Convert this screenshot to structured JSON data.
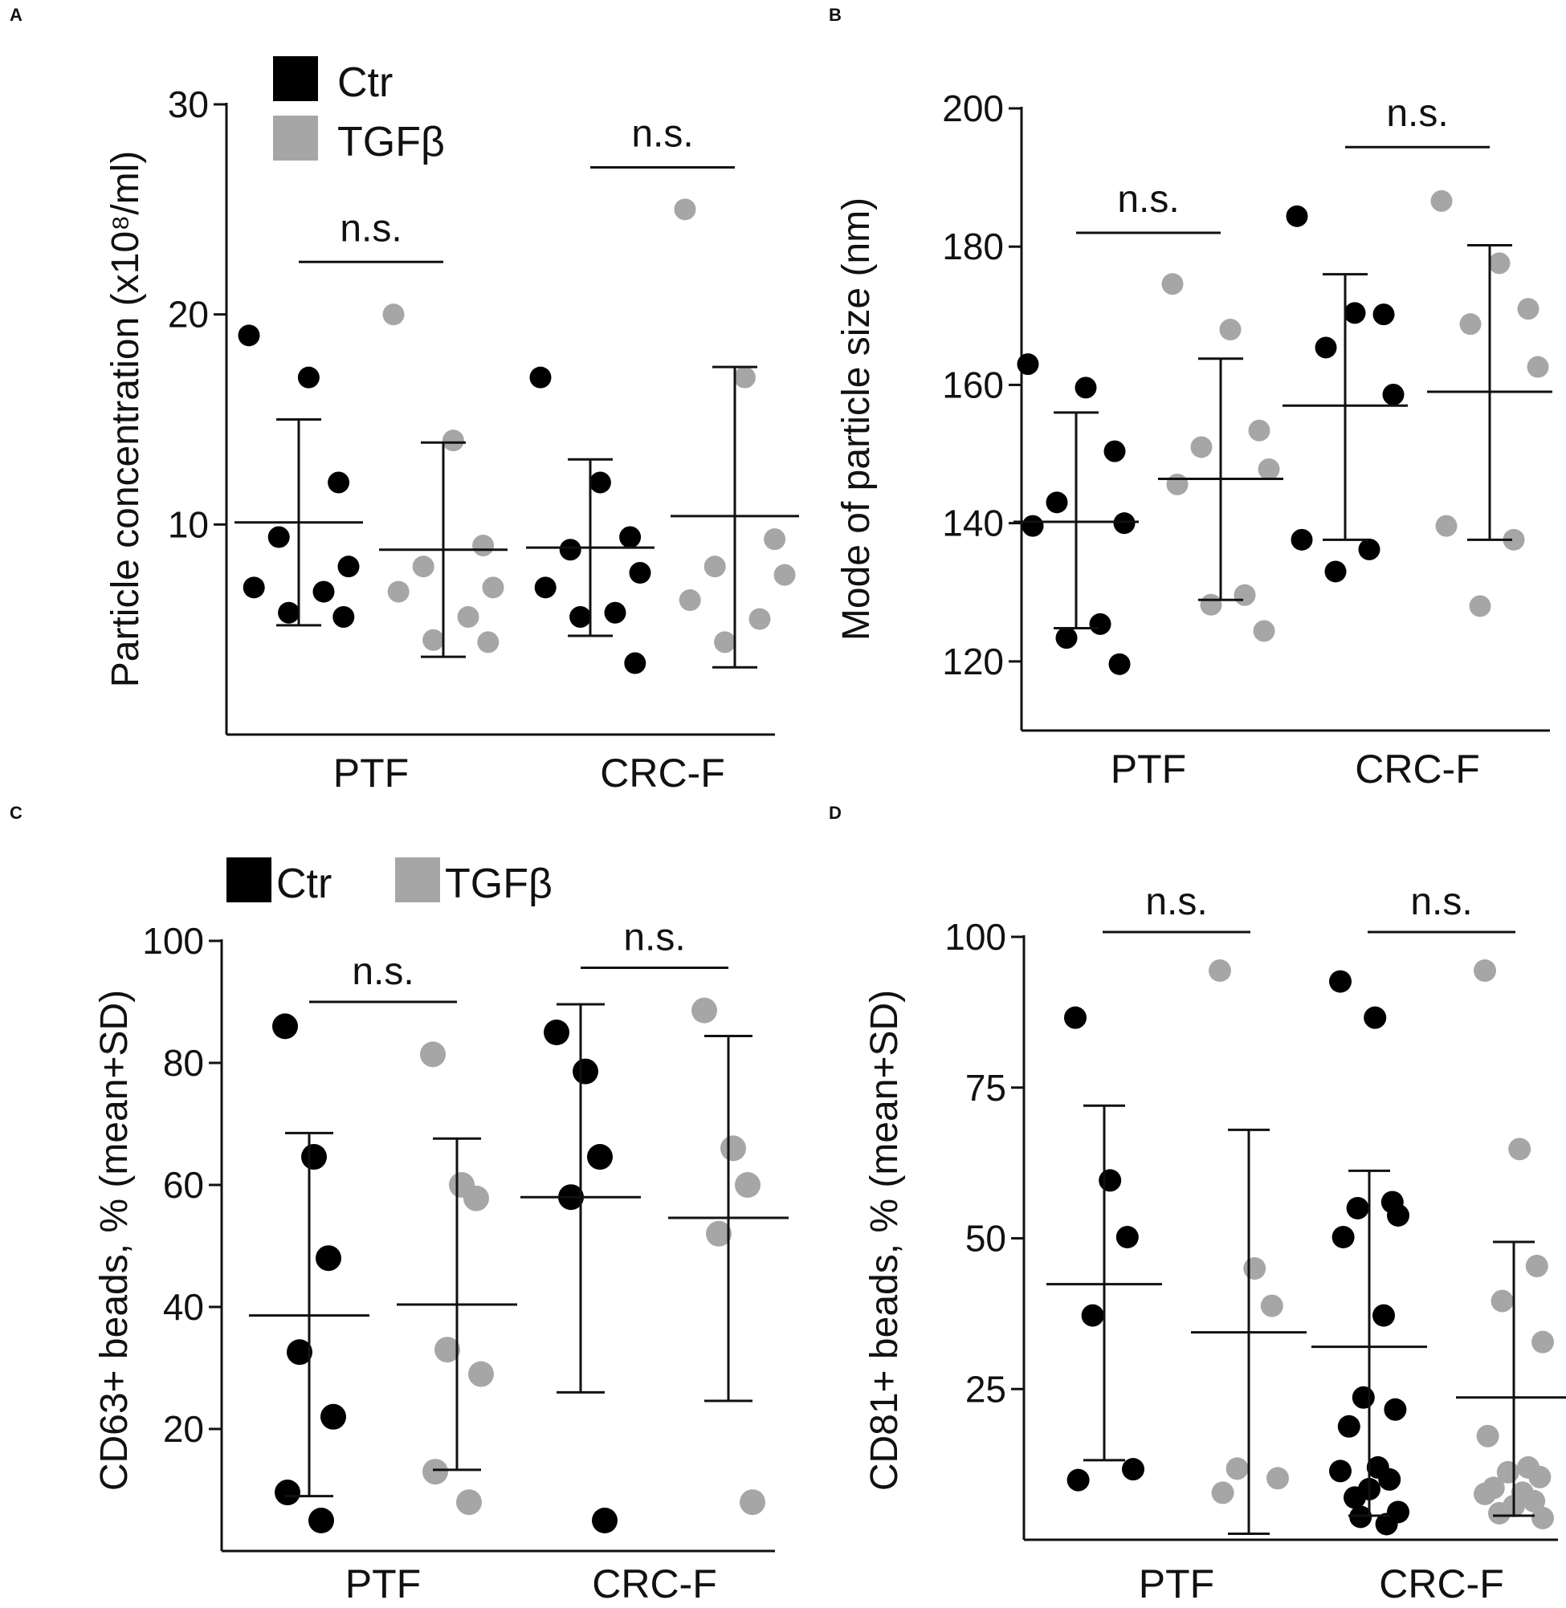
{
  "figure": {
    "colors": {
      "ctr": "#000000",
      "tgfb": "#a6a6a6",
      "axis": "#111111"
    }
  },
  "chart_data": [
    {
      "panel": "A",
      "type": "scatter",
      "categories": [
        "PTF",
        "CRC-F"
      ],
      "ylabel": "Particle concentration (x10⁸/ml)",
      "ylim": [
        0,
        30
      ],
      "yticks": [
        10,
        20,
        30
      ],
      "legend": [
        {
          "name": "Ctr",
          "color": "#000000"
        },
        {
          "name": "TGFβ",
          "color": "#a6a6a6"
        }
      ],
      "legend_position": "top-left",
      "series": [
        {
          "name": "Ctr",
          "category": "PTF",
          "mean": 10.1,
          "sd_low": 5.2,
          "sd_high": 15.0,
          "points": [
            19.0,
            17.0,
            12.0,
            9.4,
            8.0,
            7.0,
            6.8,
            5.8,
            5.6
          ]
        },
        {
          "name": "TGFβ",
          "category": "PTF",
          "mean": 8.8,
          "sd_low": 3.7,
          "sd_high": 13.9,
          "points": [
            20.0,
            14.0,
            9.0,
            8.0,
            7.0,
            6.8,
            5.6,
            4.5,
            4.4
          ]
        },
        {
          "name": "Ctr",
          "category": "CRC-F",
          "mean": 8.9,
          "sd_low": 4.7,
          "sd_high": 13.1,
          "points": [
            17.0,
            12.0,
            9.4,
            8.8,
            7.7,
            7.0,
            5.8,
            5.6,
            3.4
          ]
        },
        {
          "name": "TGFβ",
          "category": "CRC-F",
          "mean": 10.4,
          "sd_low": 3.2,
          "sd_high": 17.5,
          "points": [
            25.0,
            17.0,
            9.3,
            8.0,
            7.6,
            6.4,
            5.5,
            4.4
          ]
        }
      ],
      "significance": [
        {
          "category": "PTF",
          "label": "n.s.",
          "y": 22.5
        },
        {
          "category": "CRC-F",
          "label": "n.s.",
          "y": 27.0
        }
      ]
    },
    {
      "panel": "B",
      "type": "scatter",
      "categories": [
        "PTF",
        "CRC-F"
      ],
      "ylabel": "Mode of particle size (nm)",
      "ylim": [
        110,
        200
      ],
      "yticks": [
        120,
        140,
        160,
        180,
        200
      ],
      "series": [
        {
          "name": "Ctr",
          "category": "PTF",
          "mean": 140.2,
          "sd_low": 124.8,
          "sd_high": 156.0,
          "points": [
            163.0,
            159.6,
            150.4,
            143.0,
            140.0,
            139.6,
            125.4,
            123.4,
            119.6
          ]
        },
        {
          "name": "TGFβ",
          "category": "PTF",
          "mean": 146.4,
          "sd_low": 128.9,
          "sd_high": 163.8,
          "points": [
            174.6,
            168.0,
            153.4,
            151.0,
            147.8,
            145.6,
            129.6,
            128.2,
            124.4
          ]
        },
        {
          "name": "Ctr",
          "category": "CRC-F",
          "mean": 157.0,
          "sd_low": 137.6,
          "sd_high": 176.0,
          "points": [
            184.4,
            170.4,
            170.2,
            165.4,
            158.6,
            137.6,
            136.2,
            133.0
          ]
        },
        {
          "name": "TGFβ",
          "category": "CRC-F",
          "mean": 159.0,
          "sd_low": 137.6,
          "sd_high": 180.2,
          "points": [
            186.6,
            177.6,
            171.0,
            168.8,
            162.6,
            139.6,
            137.6,
            128.0
          ]
        }
      ],
      "significance": [
        {
          "category": "PTF",
          "label": "n.s.",
          "y": 182.0
        },
        {
          "category": "CRC-F",
          "label": "n.s.",
          "y": 194.4
        }
      ]
    },
    {
      "panel": "C",
      "type": "scatter",
      "categories": [
        "PTF",
        "CRC-F"
      ],
      "ylabel": "CD63+ beads, % (mean+SD)",
      "ylim": [
        0,
        100
      ],
      "yticks": [
        20,
        40,
        60,
        80,
        100
      ],
      "legend": [
        {
          "name": "Ctr",
          "color": "#000000"
        },
        {
          "name": "TGFβ",
          "color": "#a6a6a6"
        }
      ],
      "legend_position": "top",
      "series": [
        {
          "name": "Ctr",
          "category": "PTF",
          "mean": 38.6,
          "sd_low": 9.0,
          "sd_high": 68.5,
          "points": [
            86.0,
            64.6,
            48.0,
            32.6,
            22.0,
            9.6,
            5.0
          ]
        },
        {
          "name": "TGFβ",
          "category": "PTF",
          "mean": 40.4,
          "sd_low": 13.3,
          "sd_high": 67.6,
          "points": [
            81.4,
            60.0,
            57.8,
            33.0,
            29.0,
            13.0,
            8.0
          ]
        },
        {
          "name": "Ctr",
          "category": "CRC-F",
          "mean": 58.0,
          "sd_low": 26.0,
          "sd_high": 89.6,
          "points": [
            85.0,
            78.6,
            64.6,
            58.0,
            5.0
          ]
        },
        {
          "name": "TGFβ",
          "category": "CRC-F",
          "mean": 54.6,
          "sd_low": 24.6,
          "sd_high": 84.4,
          "points": [
            88.6,
            66.0,
            60.0,
            52.0,
            8.0
          ]
        }
      ],
      "significance": [
        {
          "category": "PTF",
          "label": "n.s.",
          "y": 90.0
        },
        {
          "category": "CRC-F",
          "label": "n.s.",
          "y": 95.6
        }
      ]
    },
    {
      "panel": "D",
      "type": "scatter",
      "categories": [
        "PTF",
        "CRC-F"
      ],
      "ylabel": "CD81+ beads, % (mean+SD)",
      "ylim": [
        0,
        100
      ],
      "yticks": [
        25,
        50,
        75,
        100
      ],
      "series": [
        {
          "name": "Ctr",
          "category": "PTF",
          "mean": 42.4,
          "sd_low": 13.2,
          "sd_high": 72.0,
          "points": [
            86.6,
            59.6,
            50.2,
            37.2,
            11.7,
            9.9
          ]
        },
        {
          "name": "TGFβ",
          "category": "PTF",
          "mean": 34.4,
          "sd_low": 1.0,
          "sd_high": 68.0,
          "points": [
            94.4,
            45.0,
            38.8,
            11.8,
            10.2,
            7.8
          ]
        },
        {
          "name": "Ctr",
          "category": "CRC-F",
          "mean": 32.0,
          "sd_low": 4.0,
          "sd_high": 61.2,
          "points": [
            92.6,
            86.6,
            56.0,
            55.0,
            53.8,
            50.2,
            37.2,
            23.6,
            21.6,
            18.8,
            12.0,
            11.4,
            10.0,
            8.4,
            7.0,
            4.6,
            3.8,
            2.6
          ]
        },
        {
          "name": "TGFβ",
          "category": "CRC-F",
          "mean": 23.6,
          "sd_low": 4.0,
          "sd_high": 49.4,
          "points": [
            94.4,
            64.8,
            45.4,
            39.6,
            32.8,
            17.2,
            12.0,
            11.2,
            10.4,
            8.6,
            7.8,
            7.6,
            6.4,
            5.6,
            4.4,
            3.6
          ]
        }
      ],
      "significance": [
        {
          "category": "PTF",
          "label": "n.s.",
          "y": 100.8
        },
        {
          "category": "CRC-F",
          "label": "n.s.",
          "y": 100.8
        }
      ]
    }
  ]
}
